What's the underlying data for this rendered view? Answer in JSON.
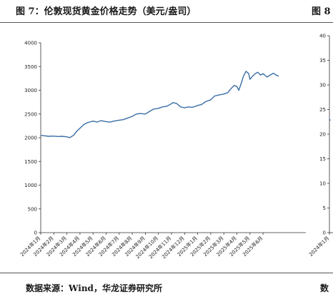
{
  "figure": {
    "title": "图 7：伦敦现货黄金价格走势（美元/盎司）",
    "next_title_fragment": "图 8",
    "source": "数据来源：Wind，华龙证券研究所",
    "next_source_fragment": "数"
  },
  "chart_data": [
    {
      "type": "line",
      "title": "",
      "xlabel": "",
      "ylabel": "",
      "ylim": [
        0,
        4000
      ],
      "yticks": [
        0,
        500,
        1000,
        1500,
        2000,
        2500,
        3000,
        3500,
        4000
      ],
      "xtick_labels": [
        "2024年1月",
        "2024年2月",
        "2024年3月",
        "2024年4月",
        "2024年5月",
        "2024年6月",
        "2024年7月",
        "2024年8月",
        "2024年9月",
        "2024年10月",
        "2024年11月",
        "2024年12月",
        "2025年1月",
        "2025年2月",
        "2025年3月",
        "2025年4月",
        "2025年5月",
        "2025年6月"
      ],
      "grid": false,
      "legend": "none",
      "color": "#3a6ea5",
      "series": [
        {
          "x": [
            0,
            0.3,
            0.6,
            1,
            1.3,
            1.6,
            2,
            2.2,
            2.5,
            2.8,
            3,
            3.3,
            3.6,
            4,
            4.3,
            4.6,
            5,
            5.3,
            5.6,
            6,
            6.3,
            6.6,
            7,
            7.3,
            7.6,
            8,
            8.3,
            8.6,
            9,
            9.3,
            9.6,
            9.9,
            10.1,
            10.4,
            10.7,
            11,
            11.3,
            11.6,
            12,
            12.3,
            12.6,
            13,
            13.3,
            13.6,
            14,
            14.3,
            14.6,
            14.8,
            15,
            15.15,
            15.3,
            15.5,
            15.7,
            15.9,
            16,
            16.2,
            16.4,
            16.6,
            16.8,
            17,
            17.3,
            17.6,
            17.8,
            18,
            18.2
          ],
          "y": [
            2050,
            2040,
            2030,
            2035,
            2025,
            2030,
            2020,
            2000,
            2050,
            2150,
            2200,
            2280,
            2320,
            2350,
            2330,
            2360,
            2340,
            2330,
            2350,
            2370,
            2380,
            2410,
            2450,
            2500,
            2510,
            2500,
            2550,
            2600,
            2620,
            2650,
            2660,
            2700,
            2740,
            2720,
            2650,
            2630,
            2650,
            2640,
            2680,
            2700,
            2760,
            2800,
            2880,
            2900,
            2920,
            2950,
            3050,
            3100,
            3080,
            3000,
            3120,
            3300,
            3400,
            3350,
            3230,
            3300,
            3350,
            3380,
            3320,
            3350,
            3280,
            3330,
            3360,
            3320,
            3300
          ]
        }
      ]
    },
    {
      "type": "line",
      "title": "",
      "xlabel": "",
      "ylabel": "",
      "ylim": [
        0,
        40
      ],
      "yticks": [
        0,
        5,
        10,
        15,
        20,
        25,
        30,
        35,
        40
      ],
      "xtick_labels": [
        "2024年1月"
      ],
      "grid": false,
      "legend": "none",
      "color": "#3a6ea5",
      "series": [
        {
          "x": [
            0,
            0.08
          ],
          "y": [
            23,
            22.8
          ]
        }
      ]
    }
  ]
}
